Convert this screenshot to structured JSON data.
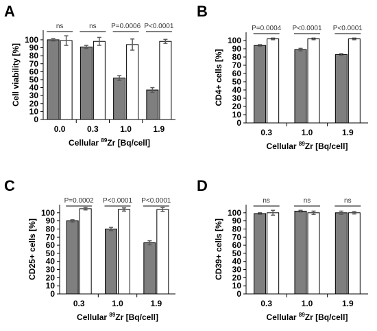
{
  "figure": {
    "colors": {
      "treated": "#7f7f7f",
      "control": "#ffffff",
      "axis": "#000000",
      "error": "#595959"
    }
  },
  "chart_data": [
    {
      "type": "bar",
      "panel": "A",
      "ylabel": "Cell viability [%]",
      "xlabel_prefix": "Cellular ",
      "xlabel_sup": "89",
      "xlabel_suffix": "Zr [Bq/cell]",
      "categories": [
        "0.0",
        "0.3",
        "1.0",
        "1.9"
      ],
      "ylim": [
        0,
        100
      ],
      "yticks": [
        "0",
        "10",
        "20",
        "30",
        "40",
        "50",
        "60",
        "70",
        "80",
        "90",
        "100"
      ],
      "series": [
        {
          "values": [
            100,
            91,
            52,
            37
          ],
          "errors": [
            1.5,
            2,
            3,
            3
          ],
          "color": "#7f7f7f"
        },
        {
          "values": [
            99,
            98,
            94,
            98
          ],
          "errors": [
            6,
            5,
            7,
            2.5
          ],
          "color": "#ffffff"
        }
      ],
      "significance": [
        "ns",
        "ns",
        "P=0.0006",
        "P<0.0001"
      ]
    },
    {
      "type": "bar",
      "panel": "B",
      "ylabel": "CD4+ cells [%]",
      "xlabel_prefix": "Cellular ",
      "xlabel_sup": "89",
      "xlabel_suffix": "Zr [Bq/cell]",
      "categories": [
        "0.3",
        "1.0",
        "1.9"
      ],
      "ylim": [
        0,
        100
      ],
      "yticks": [
        "0",
        "10",
        "20",
        "30",
        "40",
        "50",
        "60",
        "70",
        "80",
        "90",
        "100"
      ],
      "series": [
        {
          "values": [
            94,
            89,
            83
          ],
          "errors": [
            1,
            1.5,
            1
          ],
          "color": "#7f7f7f"
        },
        {
          "values": [
            102,
            102,
            102
          ],
          "errors": [
            1,
            1,
            1
          ],
          "color": "#ffffff"
        }
      ],
      "significance": [
        "P=0.0004",
        "P<0.0001",
        "P<0.0001"
      ]
    },
    {
      "type": "bar",
      "panel": "C",
      "ylabel": "CD25+ cells [%]",
      "xlabel_prefix": "Cellular ",
      "xlabel_sup": "89",
      "xlabel_suffix": "Zr [Bq/cell]",
      "categories": [
        "0.3",
        "1.0",
        "1.9"
      ],
      "ylim": [
        0,
        100
      ],
      "yticks": [
        "0",
        "10",
        "20",
        "30",
        "40",
        "50",
        "60",
        "70",
        "80",
        "90",
        "100"
      ],
      "series": [
        {
          "values": [
            90,
            80,
            63
          ],
          "errors": [
            1.5,
            2,
            2.5
          ],
          "color": "#7f7f7f"
        },
        {
          "values": [
            105,
            104,
            104
          ],
          "errors": [
            1.5,
            2,
            2.5
          ],
          "color": "#ffffff"
        }
      ],
      "significance": [
        "P=0.0002",
        "P<0.0001",
        "P<0.0001"
      ]
    },
    {
      "type": "bar",
      "panel": "D",
      "ylabel": "CD39+ cells [%]",
      "xlabel_prefix": "Cellular ",
      "xlabel_sup": "89",
      "xlabel_suffix": "Zr [Bq/cell]",
      "categories": [
        "0.3",
        "1.0",
        "1.9"
      ],
      "ylim": [
        0,
        100
      ],
      "yticks": [
        "0",
        "10",
        "20",
        "30",
        "40",
        "50",
        "60",
        "70",
        "80",
        "90",
        "100"
      ],
      "series": [
        {
          "values": [
            99,
            102,
            100
          ],
          "errors": [
            1,
            1,
            2
          ],
          "color": "#7f7f7f"
        },
        {
          "values": [
            100,
            100,
            100
          ],
          "errors": [
            3,
            2,
            1.5
          ],
          "color": "#ffffff"
        }
      ],
      "significance": [
        "ns",
        "ns",
        "ns"
      ]
    }
  ]
}
